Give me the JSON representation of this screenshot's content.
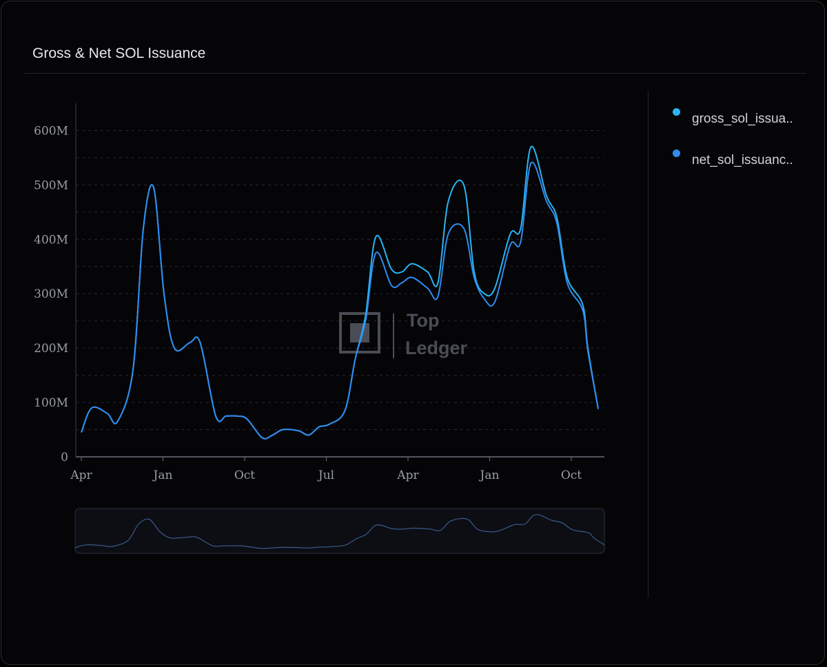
{
  "page": {
    "title": "Gross & Net SOL Issuance"
  },
  "legend": {
    "items": [
      {
        "label": "gross_sol_issua..",
        "color": "#29b6f6"
      },
      {
        "label": "net_sol_issuanc..",
        "color": "#2f8cf0"
      }
    ]
  },
  "watermark": {
    "line1": "Top",
    "line2": "Ledger"
  },
  "chart_data": {
    "type": "line",
    "x_tick_labels": [
      "Apr",
      "Jan",
      "Oct",
      "Jul",
      "Apr",
      "Jan",
      "Oct"
    ],
    "y_tick_labels": [
      "0",
      "100M",
      "200M",
      "300M",
      "400M",
      "500M",
      "600M"
    ],
    "ylim": [
      0,
      650
    ],
    "y_unit": "M",
    "grid": "horizontal dashed",
    "legend_position": "right",
    "has_range_navigator": true,
    "series": [
      {
        "name": "gross_sol_issua..",
        "color": "#29b6f6",
        "x": [
          0,
          0.02,
          0.05,
          0.07,
          0.1,
          0.12,
          0.14,
          0.16,
          0.18,
          0.21,
          0.23,
          0.26,
          0.28,
          0.3,
          0.32,
          0.35,
          0.37,
          0.39,
          0.42,
          0.44,
          0.46,
          0.48,
          0.51,
          0.53,
          0.55,
          0.57,
          0.6,
          0.62,
          0.64,
          0.67,
          0.69,
          0.71,
          0.74,
          0.76,
          0.78,
          0.8,
          0.83,
          0.85,
          0.87,
          0.9,
          0.92,
          0.94,
          0.97,
          0.98,
          1.0
        ],
        "values": [
          45,
          90,
          80,
          65,
          160,
          420,
          495,
          300,
          200,
          210,
          210,
          75,
          75,
          75,
          70,
          35,
          40,
          50,
          48,
          40,
          55,
          60,
          85,
          180,
          260,
          405,
          345,
          340,
          355,
          340,
          320,
          470,
          500,
          340,
          300,
          310,
          410,
          420,
          570,
          480,
          440,
          330,
          280,
          200,
          88
        ]
      },
      {
        "name": "net_sol_issuanc..",
        "color": "#2f8cf0",
        "x": [
          0,
          0.02,
          0.05,
          0.07,
          0.1,
          0.12,
          0.14,
          0.16,
          0.18,
          0.21,
          0.23,
          0.26,
          0.28,
          0.3,
          0.32,
          0.35,
          0.37,
          0.39,
          0.42,
          0.44,
          0.46,
          0.48,
          0.51,
          0.53,
          0.55,
          0.57,
          0.6,
          0.62,
          0.64,
          0.67,
          0.69,
          0.71,
          0.74,
          0.76,
          0.78,
          0.8,
          0.83,
          0.85,
          0.87,
          0.9,
          0.92,
          0.94,
          0.97,
          0.98,
          1.0
        ],
        "values": [
          45,
          90,
          80,
          65,
          160,
          420,
          495,
          300,
          200,
          210,
          210,
          75,
          75,
          75,
          70,
          35,
          40,
          50,
          48,
          40,
          55,
          60,
          85,
          180,
          250,
          375,
          315,
          320,
          330,
          310,
          295,
          410,
          420,
          330,
          290,
          285,
          390,
          395,
          540,
          470,
          430,
          320,
          270,
          195,
          88
        ]
      }
    ]
  }
}
